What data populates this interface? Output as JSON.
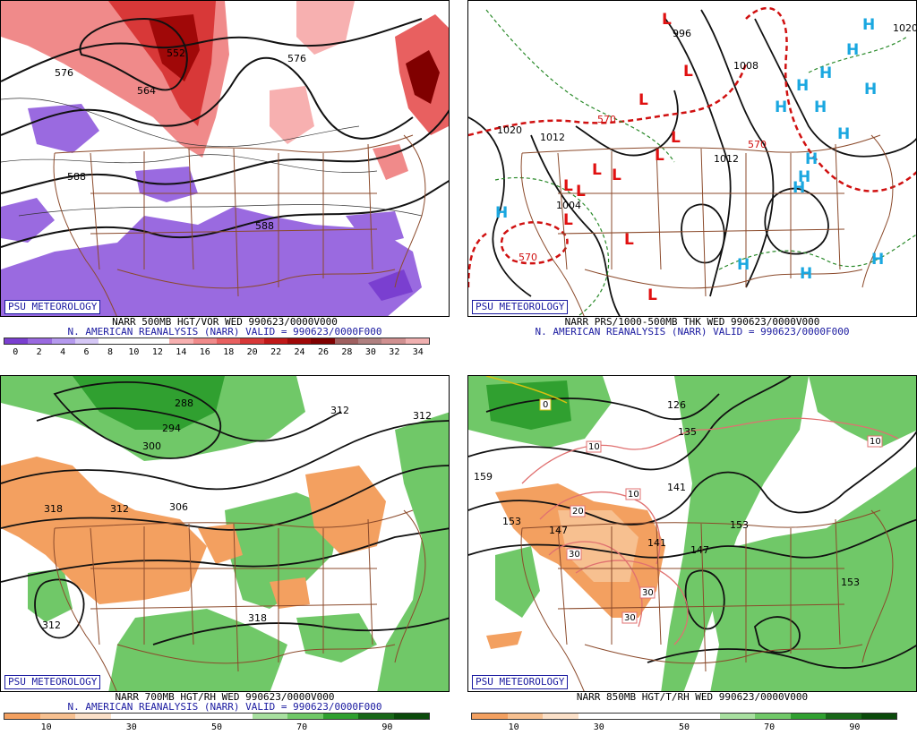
{
  "badge": "PSU METEOROLOGY",
  "panels": {
    "p1": {
      "line1": "NARR 500MB HGT/VOR WED 990623/0000V000",
      "line2": "N. AMERICAN REANALYSIS (NARR) VALID = 990623/0000F000",
      "contour_labels": [
        "576",
        "576",
        "564",
        "552",
        "588",
        "588"
      ],
      "vort_ticks": [
        "0",
        "2",
        "4",
        "6",
        "8",
        "10",
        "12",
        "14",
        "16",
        "18",
        "20",
        "22",
        "24",
        "26",
        "28",
        "30",
        "32",
        "34"
      ],
      "vort_colors": [
        "#7a3fd0",
        "#9a6ae0",
        "#b59aee",
        "#d6c8f6",
        "#ffffff",
        "#ffffff",
        "#ffffff",
        "#f7b0b0",
        "#f08a8a",
        "#e86060",
        "#d83838",
        "#c01818",
        "#a00808",
        "#800000",
        "#a06060",
        "#b08080",
        "#d09090",
        "#f0b0b0"
      ]
    },
    "p2": {
      "line1": "NARR PRS/1000-500MB THK WED 990623/0000V000",
      "line2": "N. AMERICAN REANALYSIS (NARR) VALID = 990623/0000F000",
      "labels": [
        "996",
        "1008",
        "1020",
        "1012",
        "1012",
        "1004",
        "1020",
        "570",
        "570",
        "570"
      ],
      "highs": [
        "H",
        "H",
        "H",
        "H",
        "H",
        "H",
        "H",
        "H",
        "H",
        "H",
        "H",
        "H",
        "H",
        "H",
        "H"
      ],
      "lows": [
        "L",
        "L",
        "L",
        "L",
        "L",
        "L",
        "L",
        "L",
        "L",
        "L",
        "L",
        "L"
      ]
    },
    "p3": {
      "line1": "NARR 700MB HGT/RH WED 990623/0000V000",
      "line2": "N. AMERICAN REANALYSIS (NARR) VALID = 990623/0000F000",
      "contour_labels": [
        "288",
        "294",
        "300",
        "318",
        "312",
        "306",
        "312",
        "312",
        "318",
        "312"
      ],
      "rh_ticks": [
        "10",
        "30",
        "50",
        "70",
        "90"
      ]
    },
    "p4": {
      "line1": "NARR 850MB HGT/T/RH WED 990623/0000V000",
      "contour_labels": [
        "126",
        "135",
        "141",
        "153",
        "147",
        "147",
        "153",
        "159",
        "153",
        "141"
      ],
      "temp_labels": [
        "0",
        "10",
        "10",
        "10",
        "20",
        "30",
        "30",
        "30"
      ],
      "rh_ticks": [
        "10",
        "30",
        "50",
        "70",
        "90"
      ]
    }
  },
  "rh_colors": [
    "#f3a060",
    "#f7c090",
    "#fbe0c8",
    "#ffffff",
    "#ffffff",
    "#ffffff",
    "#ffffff",
    "#a8e0a0",
    "#70c868",
    "#30a030",
    "#186818",
    "#0a4a0a"
  ]
}
